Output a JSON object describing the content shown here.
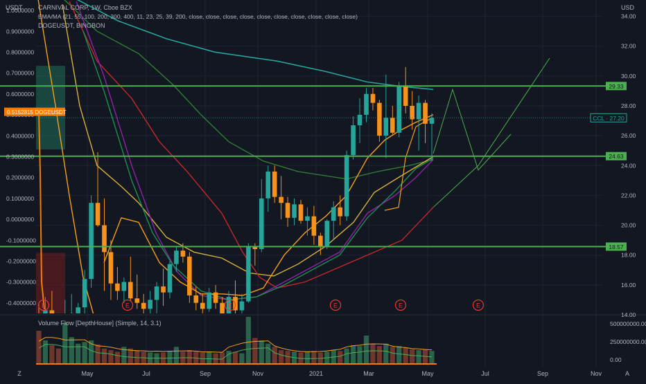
{
  "header": {
    "left_currency": "USDT",
    "right_currency": "USD",
    "legend_main": "CARNIVAL CORP, 1W, Cboe BZX",
    "legend_ema": "EMA/MA (21, 55, 100, 200, 300, 400, 11, 23, 25, 39, 200, close, close, close, close, close, close, close, close, close, close)",
    "legend_doge": "DOGEUSDT, BINGBON",
    "volume_legend": "Volume Flow [DepthHouse] (Simple, 14, 3.1)"
  },
  "colors": {
    "background": "#131722",
    "grid": "#1f2433",
    "up": "#26a69a",
    "down": "#f7931a",
    "level": "#4caf50",
    "ma_orange": "#f7a01a",
    "ma_yellow": "#d7b33a",
    "ma_green": "#1e8f4e",
    "ma_darkgreen": "#2e7d32",
    "ma_purple": "#8e24aa",
    "ma_red": "#c62828",
    "ma_teal": "#26a69a",
    "doge": "#f57c00"
  },
  "chart_data": {
    "type": "candlestick",
    "title": "CARNIVAL CORP, 1W, Cboe BZX",
    "x_ticks": [
      "Z",
      "May",
      "Jul",
      "Sep",
      "Nov",
      "2021",
      "Mar",
      "May",
      "Jul",
      "Sep",
      "Nov",
      "A"
    ],
    "right_axis": {
      "unit": "USD",
      "range": [
        14,
        35
      ],
      "ticks": [
        "34.00",
        "32.00",
        "30.00",
        "28.00",
        "26.00",
        "24.00",
        "22.00",
        "20.00",
        "18.00",
        "16.00",
        "14.00"
      ]
    },
    "left_axis": {
      "unit": "USDT",
      "range": [
        -0.45,
        1.05
      ],
      "ticks": [
        "1.0000000",
        "0.9000000",
        "0.8000000",
        "0.7000000",
        "0.6000000",
        "0.5000000",
        "0.4000000",
        "0.3000000",
        "0.2000000",
        "0.1000000",
        "0.0000000",
        "-0.1000000",
        "-0.2000000",
        "-0.3000000",
        "-0.4000000"
      ]
    },
    "volume_axis": {
      "ticks": [
        "500000000.00",
        "250000000.00",
        "0.00"
      ]
    },
    "levels": [
      {
        "price": 29.33,
        "label": "29.33"
      },
      {
        "price": 24.63,
        "label": "24.63"
      },
      {
        "price": 18.57,
        "label": "18.57"
      }
    ],
    "last_price": {
      "label": "CCL · 27.20",
      "value": 27.2
    },
    "doge_label": {
      "value": "0.5152815",
      "name": "DOGEUSDT"
    },
    "earnings_marker": "E",
    "candles": [
      {
        "o": 13.8,
        "h": 14.8,
        "l": 12.0,
        "c": 12.8
      },
      {
        "o": 12.6,
        "h": 15.2,
        "l": 11.3,
        "c": 14.3
      },
      {
        "o": 14.3,
        "h": 15.6,
        "l": 13.1,
        "c": 13.6
      },
      {
        "o": 13.6,
        "h": 14.1,
        "l": 12.4,
        "c": 12.9
      },
      {
        "o": 12.9,
        "h": 15.0,
        "l": 12.5,
        "c": 13.8
      },
      {
        "o": 13.8,
        "h": 15.4,
        "l": 13.2,
        "c": 14.1
      },
      {
        "o": 14.1,
        "h": 14.8,
        "l": 13.5,
        "c": 14.5
      },
      {
        "o": 14.5,
        "h": 17.0,
        "l": 13.2,
        "c": 16.4
      },
      {
        "o": 16.4,
        "h": 22.0,
        "l": 15.8,
        "c": 21.5
      },
      {
        "o": 21.5,
        "h": 24.9,
        "l": 19.9,
        "c": 20.0
      },
      {
        "o": 20.0,
        "h": 21.8,
        "l": 15.6,
        "c": 18.2
      },
      {
        "o": 18.2,
        "h": 19.0,
        "l": 15.0,
        "c": 16.1
      },
      {
        "o": 16.1,
        "h": 17.2,
        "l": 15.0,
        "c": 15.6
      },
      {
        "o": 15.6,
        "h": 16.5,
        "l": 14.8,
        "c": 16.2
      },
      {
        "o": 16.2,
        "h": 17.9,
        "l": 14.9,
        "c": 15.1
      },
      {
        "o": 15.1,
        "h": 16.7,
        "l": 14.4,
        "c": 14.8
      },
      {
        "o": 14.8,
        "h": 15.4,
        "l": 13.6,
        "c": 14.4
      },
      {
        "o": 14.4,
        "h": 15.6,
        "l": 13.9,
        "c": 15.0
      },
      {
        "o": 15.0,
        "h": 16.2,
        "l": 14.1,
        "c": 15.9
      },
      {
        "o": 15.9,
        "h": 17.1,
        "l": 14.6,
        "c": 15.5
      },
      {
        "o": 15.5,
        "h": 17.6,
        "l": 15.1,
        "c": 17.4
      },
      {
        "o": 17.4,
        "h": 18.6,
        "l": 16.9,
        "c": 18.3
      },
      {
        "o": 18.3,
        "h": 18.8,
        "l": 17.5,
        "c": 17.9
      },
      {
        "o": 17.9,
        "h": 18.2,
        "l": 14.8,
        "c": 15.3
      },
      {
        "o": 15.3,
        "h": 15.9,
        "l": 14.3,
        "c": 14.8
      },
      {
        "o": 14.8,
        "h": 15.4,
        "l": 14.1,
        "c": 14.4
      },
      {
        "o": 14.4,
        "h": 15.8,
        "l": 14.2,
        "c": 15.5
      },
      {
        "o": 15.5,
        "h": 16.0,
        "l": 14.4,
        "c": 14.8
      },
      {
        "o": 14.8,
        "h": 15.2,
        "l": 13.5,
        "c": 13.9
      },
      {
        "o": 13.9,
        "h": 15.6,
        "l": 13.6,
        "c": 15.2
      },
      {
        "o": 15.2,
        "h": 16.3,
        "l": 13.8,
        "c": 14.3
      },
      {
        "o": 14.3,
        "h": 15.4,
        "l": 13.8,
        "c": 14.9
      },
      {
        "o": 14.9,
        "h": 18.8,
        "l": 14.8,
        "c": 18.6
      },
      {
        "o": 18.6,
        "h": 18.8,
        "l": 17.3,
        "c": 18.4
      },
      {
        "o": 18.4,
        "h": 23.1,
        "l": 18.2,
        "c": 21.8
      },
      {
        "o": 21.8,
        "h": 24.0,
        "l": 20.9,
        "c": 23.6
      },
      {
        "o": 23.6,
        "h": 24.0,
        "l": 21.5,
        "c": 21.9
      },
      {
        "o": 21.9,
        "h": 23.3,
        "l": 20.4,
        "c": 21.5
      },
      {
        "o": 21.5,
        "h": 21.9,
        "l": 19.9,
        "c": 20.5
      },
      {
        "o": 20.5,
        "h": 21.8,
        "l": 20.0,
        "c": 21.4
      },
      {
        "o": 21.4,
        "h": 21.7,
        "l": 20.1,
        "c": 20.3
      },
      {
        "o": 20.3,
        "h": 21.2,
        "l": 19.3,
        "c": 20.6
      },
      {
        "o": 20.6,
        "h": 21.3,
        "l": 18.7,
        "c": 19.3
      },
      {
        "o": 19.3,
        "h": 19.5,
        "l": 18.0,
        "c": 18.6
      },
      {
        "o": 18.6,
        "h": 20.4,
        "l": 18.4,
        "c": 20.3
      },
      {
        "o": 20.3,
        "h": 21.6,
        "l": 19.0,
        "c": 21.2
      },
      {
        "o": 21.2,
        "h": 22.0,
        "l": 20.0,
        "c": 20.6
      },
      {
        "o": 20.6,
        "h": 25.0,
        "l": 20.3,
        "c": 24.7
      },
      {
        "o": 24.7,
        "h": 27.3,
        "l": 24.4,
        "c": 26.7
      },
      {
        "o": 26.7,
        "h": 28.5,
        "l": 25.5,
        "c": 27.4
      },
      {
        "o": 27.4,
        "h": 29.2,
        "l": 26.9,
        "c": 28.8
      },
      {
        "o": 28.8,
        "h": 29.2,
        "l": 27.7,
        "c": 28.2
      },
      {
        "o": 28.2,
        "h": 28.4,
        "l": 25.6,
        "c": 26.0
      },
      {
        "o": 26.0,
        "h": 30.1,
        "l": 24.5,
        "c": 27.2
      },
      {
        "o": 27.2,
        "h": 28.0,
        "l": 26.1,
        "c": 26.2
      },
      {
        "o": 26.2,
        "h": 29.6,
        "l": 25.9,
        "c": 29.3
      },
      {
        "o": 29.3,
        "h": 30.6,
        "l": 27.5,
        "c": 28.0
      },
      {
        "o": 28.0,
        "h": 29.0,
        "l": 26.4,
        "c": 27.1
      },
      {
        "o": 27.1,
        "h": 28.7,
        "l": 25.0,
        "c": 28.2
      },
      {
        "o": 28.2,
        "h": 28.4,
        "l": 25.5,
        "c": 26.8
      },
      {
        "o": 26.8,
        "h": 27.5,
        "l": 24.3,
        "c": 27.2
      }
    ],
    "volume": [
      420,
      300,
      240,
      200,
      520,
      340,
      260,
      280,
      300,
      250,
      200,
      180,
      160,
      220,
      200,
      180,
      160,
      150,
      140,
      150,
      170,
      220,
      160,
      180,
      160,
      150,
      160,
      140,
      150,
      170,
      160,
      140,
      600,
      330,
      300,
      260,
      220,
      180,
      170,
      160,
      150,
      160,
      170,
      150,
      160,
      180,
      170,
      200,
      240,
      230,
      360,
      260,
      230,
      260,
      220,
      230,
      210,
      190,
      180,
      190,
      170
    ]
  }
}
